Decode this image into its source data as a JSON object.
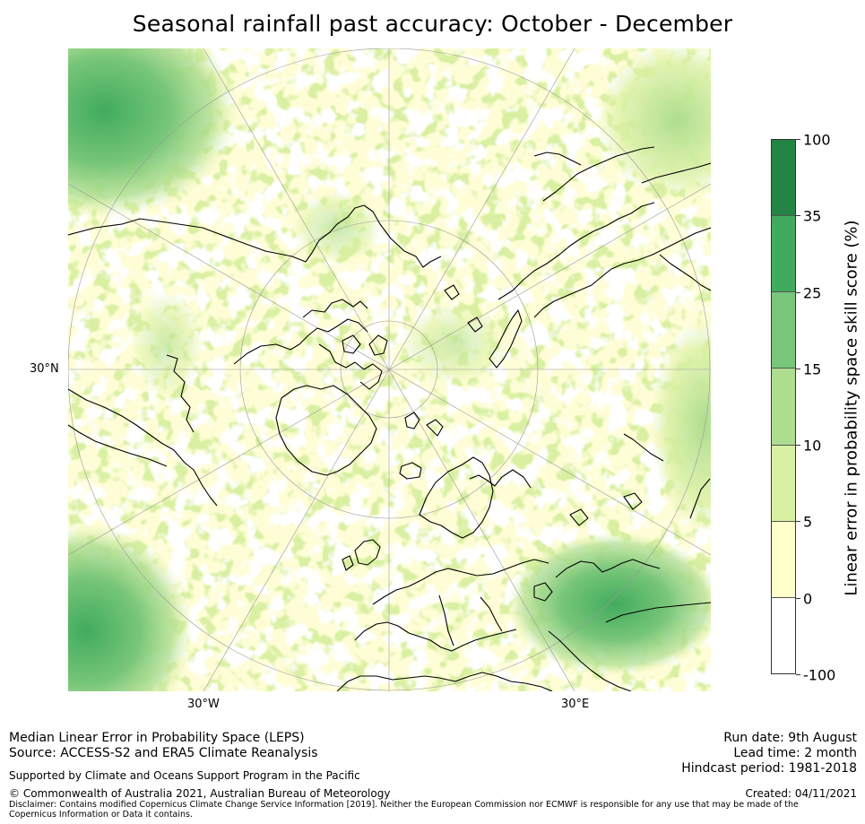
{
  "title": "Seasonal rainfall past accuracy: October - December",
  "map": {
    "latitude_label": "30°N",
    "longitude_labels": {
      "west": "30°W",
      "east": "30°E"
    },
    "colors": {
      "land_coast": "#000000",
      "grid": "#9a9a9a",
      "high": "#238443",
      "mid_high": "#41ab5d",
      "mid": "#78c679",
      "mid_low": "#addd8e",
      "low": "#d9f0a3",
      "very_low": "#ffffcc",
      "none": "#ffffff"
    }
  },
  "colorbar": {
    "label": "Linear error in probability space skill score (%)",
    "ticks": [
      "100",
      "35",
      "25",
      "15",
      "10",
      "5",
      "0",
      "-100"
    ],
    "colors": [
      "#238443",
      "#41ab5d",
      "#78c679",
      "#addd8e",
      "#d9f0a3",
      "#ffffcc",
      "#ffffff"
    ]
  },
  "footer": {
    "method": "Median Linear Error in Probability Space (LEPS)",
    "source": "Source: ACCESS-S2 and ERA5 Climate Reanalysis",
    "support": "Supported by Climate and Oceans Support Program in the Pacific",
    "copyright": "© Commonwealth of Australia 2021, Australian Bureau of Meteorology",
    "disclaimer": "Disclaimer: Contains modified Copernicus Climate Change Service Information [2019]. Neither the European Commission nor ECMWF is responsible for any use that may be made of the Copernicus Information or Data it contains.",
    "run_date": "Run date: 9th August",
    "lead_time": "Lead time: 2 month",
    "hindcast": "Hindcast period: 1981-2018",
    "created": "Created: 04/11/2021"
  }
}
